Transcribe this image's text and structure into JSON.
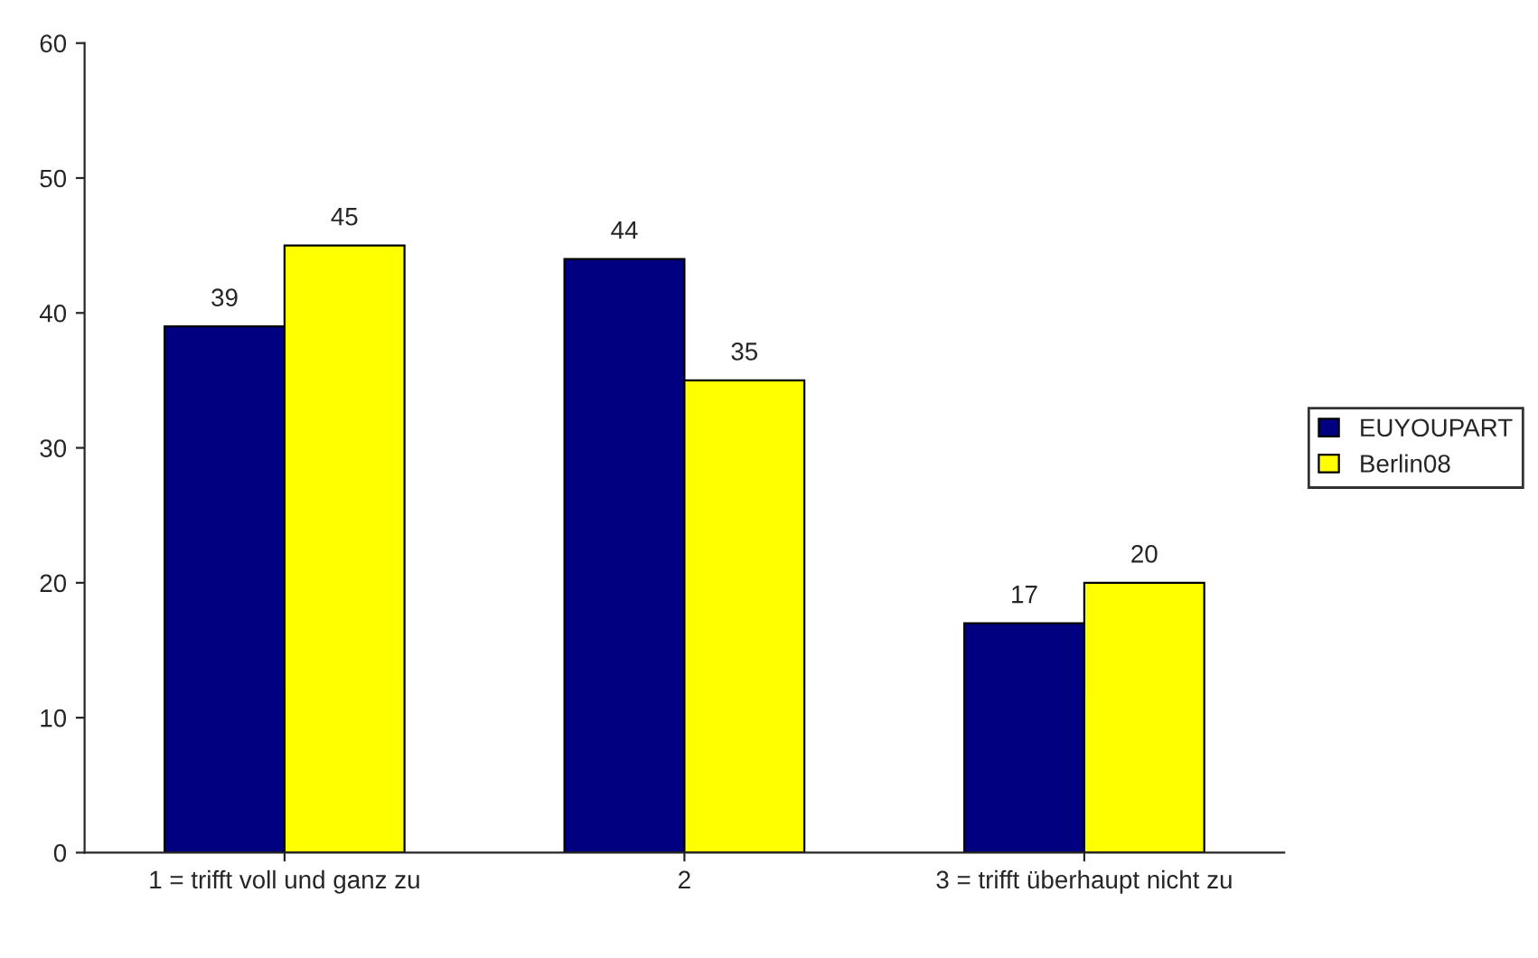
{
  "chart_data": {
    "type": "bar",
    "categories": [
      "1 = trifft voll und ganz zu",
      "2",
      "3 = trifft überhaupt nicht zu"
    ],
    "series": [
      {
        "name": "EUYOUPART",
        "color": "#000080",
        "values": [
          39,
          44,
          17
        ]
      },
      {
        "name": "Berlin08",
        "color": "#ffff00",
        "values": [
          45,
          35,
          20
        ]
      }
    ],
    "ylim": [
      0,
      60
    ],
    "yticks": [
      0,
      10,
      20,
      30,
      40,
      50,
      60
    ],
    "data_labels": true,
    "grid": false,
    "legend": "right"
  }
}
